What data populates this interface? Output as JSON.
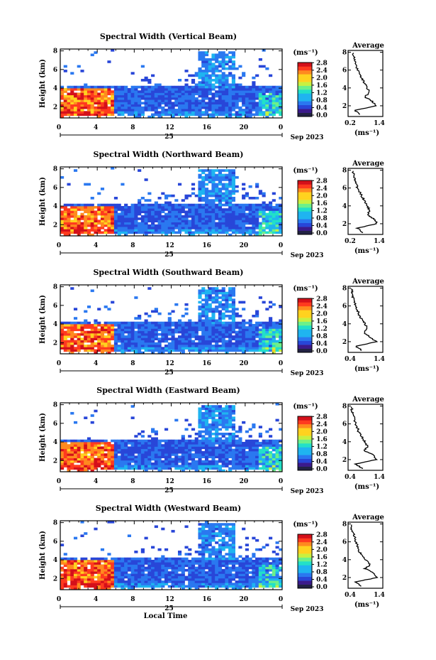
{
  "figure": {
    "xlabel": "Local Time"
  },
  "panels": [
    {
      "title": "Spectral Width (Vertical Beam)",
      "avg_xticks": [
        "0.2",
        "1.4"
      ]
    },
    {
      "title": "Spectral Width (Northward Beam)",
      "avg_xticks": [
        "0.2",
        "1.4"
      ]
    },
    {
      "title": "Spectral Width (Southward Beam)",
      "avg_xticks": [
        "0.4",
        "1.4"
      ]
    },
    {
      "title": "Spectral Width (Eastward Beam)",
      "avg_xticks": [
        "0.4",
        "1.4"
      ]
    },
    {
      "title": "Spectral Width (Westward Beam)",
      "avg_xticks": [
        "0.4",
        "1.4"
      ]
    }
  ],
  "shared": {
    "ylabel": "Height (km)",
    "yticks": [
      "2",
      "4",
      "6",
      "8"
    ],
    "xticks": [
      "0",
      "4",
      "8",
      "12",
      "16",
      "20",
      "0"
    ],
    "date_day": "25",
    "date_label": "Sep 2023",
    "colorbar_unit": "(ms⁻¹)",
    "colorbar_ticks": [
      "0.0",
      "0.4",
      "0.8",
      "1.2",
      "1.6",
      "2.0",
      "2.4",
      "2.8"
    ],
    "avg_title": "Average",
    "avg_yticks": [
      "2",
      "4",
      "6",
      "8"
    ],
    "avg_unit": "(ms⁻¹)"
  },
  "chart_data": {
    "type": "heatmap",
    "x_range_hours": [
      0,
      24
    ],
    "y_range_km": [
      0.8,
      8.2
    ],
    "color_range": [
      0.0,
      2.8
    ],
    "colormap": [
      "#3b1a8c",
      "#2846d8",
      "#2a78f0",
      "#1fb4f0",
      "#22e0c8",
      "#6cf08a",
      "#c8f040",
      "#ffd21f",
      "#ff8a1f",
      "#ff3a1f",
      "#d4101a"
    ],
    "average_profile_height_km": [
      1.0,
      1.5,
      2.0,
      2.5,
      3.0,
      3.5,
      4.0,
      4.5,
      5.0,
      5.5,
      6.0,
      6.5,
      7.0,
      7.5,
      8.0
    ],
    "average_profile_width_ms": [
      [
        0.6,
        0.4,
        1.3,
        1.1,
        0.8,
        1.0,
        0.9,
        0.8,
        0.7,
        0.6,
        0.5,
        0.45,
        0.4,
        0.35,
        0.3
      ],
      [
        0.7,
        0.5,
        1.3,
        1.2,
        0.9,
        1.0,
        0.9,
        0.8,
        0.7,
        0.6,
        0.5,
        0.45,
        0.4,
        0.35,
        0.3
      ],
      [
        0.8,
        0.6,
        1.3,
        1.1,
        0.9,
        1.0,
        0.9,
        0.8,
        0.7,
        0.65,
        0.6,
        0.55,
        0.5,
        0.45,
        0.45
      ],
      [
        0.8,
        0.6,
        1.3,
        1.2,
        0.9,
        1.0,
        0.9,
        0.8,
        0.7,
        0.65,
        0.6,
        0.55,
        0.5,
        0.45,
        0.45
      ],
      [
        0.8,
        0.6,
        1.3,
        1.2,
        0.9,
        1.1,
        0.9,
        0.8,
        0.7,
        0.65,
        0.6,
        0.55,
        0.5,
        0.45,
        0.45
      ]
    ]
  }
}
